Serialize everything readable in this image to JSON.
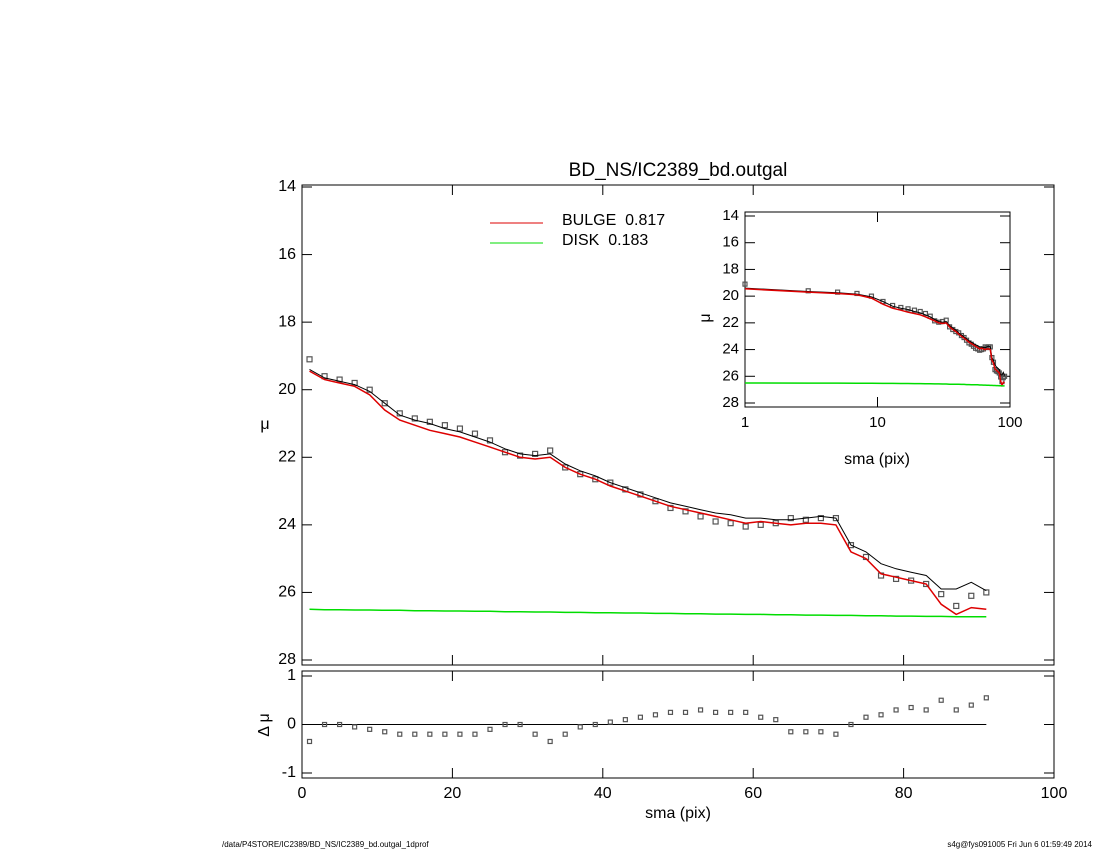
{
  "chart_data": [
    {
      "type": "line",
      "title": "BD_NS/IC2389_bd.outgal",
      "ylabel": "μ",
      "x": [
        1,
        3,
        5,
        7,
        9,
        11,
        13,
        15,
        17,
        19,
        21,
        23,
        25,
        27,
        29,
        31,
        33,
        35,
        37,
        39,
        41,
        43,
        45,
        47,
        49,
        51,
        53,
        55,
        57,
        59,
        61,
        63,
        65,
        67,
        69,
        71,
        73,
        75,
        77,
        79,
        81,
        83,
        85,
        87,
        89,
        91
      ],
      "points": {
        "color": "#555555",
        "values": [
          19.1,
          19.6,
          19.7,
          19.8,
          20.0,
          20.4,
          20.7,
          20.85,
          20.95,
          21.05,
          21.15,
          21.3,
          21.5,
          21.85,
          21.95,
          21.9,
          21.8,
          22.3,
          22.5,
          22.65,
          22.75,
          22.95,
          23.1,
          23.3,
          23.5,
          23.6,
          23.75,
          23.9,
          23.95,
          24.05,
          24.0,
          23.95,
          23.8,
          23.85,
          23.8,
          23.8,
          24.6,
          24.95,
          25.5,
          25.6,
          25.65,
          25.75,
          26.05,
          26.4,
          26.1,
          26.0
        ]
      },
      "total": {
        "color": "#000000",
        "values": [
          19.4,
          19.65,
          19.75,
          19.85,
          20.05,
          20.4,
          20.75,
          20.9,
          21.0,
          21.15,
          21.25,
          21.4,
          21.55,
          21.75,
          21.9,
          21.95,
          21.9,
          22.2,
          22.4,
          22.55,
          22.75,
          22.9,
          23.05,
          23.2,
          23.35,
          23.45,
          23.55,
          23.65,
          23.7,
          23.8,
          23.8,
          23.85,
          23.85,
          23.8,
          23.75,
          23.8,
          24.6,
          24.8,
          25.15,
          25.3,
          25.4,
          25.5,
          25.9,
          25.9,
          25.7,
          25.95
        ]
      },
      "series": [
        {
          "name": "BULGE  0.817",
          "color": "#dd0000",
          "values": [
            19.45,
            19.7,
            19.8,
            19.9,
            20.15,
            20.6,
            20.9,
            21.05,
            21.2,
            21.3,
            21.4,
            21.55,
            21.7,
            21.85,
            22.0,
            22.05,
            22.0,
            22.3,
            22.5,
            22.65,
            22.85,
            23.0,
            23.15,
            23.3,
            23.45,
            23.55,
            23.65,
            23.75,
            23.85,
            23.95,
            23.9,
            23.95,
            24.0,
            23.95,
            23.95,
            24.0,
            24.8,
            25.0,
            25.45,
            25.55,
            25.65,
            25.75,
            26.35,
            26.65,
            26.45,
            26.5
          ]
        },
        {
          "name": "DISK  0.183",
          "color": "#00dd00",
          "values": [
            26.5,
            26.51,
            26.51,
            26.52,
            26.52,
            26.53,
            26.53,
            26.54,
            26.54,
            26.55,
            26.55,
            26.56,
            26.56,
            26.57,
            26.57,
            26.58,
            26.58,
            26.59,
            26.59,
            26.6,
            26.6,
            26.61,
            26.61,
            26.62,
            26.62,
            26.63,
            26.63,
            26.64,
            26.64,
            26.65,
            26.65,
            26.66,
            26.66,
            26.67,
            26.67,
            26.68,
            26.68,
            26.69,
            26.69,
            26.7,
            26.7,
            26.71,
            26.71,
            26.72,
            26.72,
            26.72
          ]
        }
      ],
      "xlim": [
        0,
        100
      ],
      "xticks": [
        0,
        20,
        40,
        60,
        80,
        100
      ],
      "ylim": [
        14,
        28
      ],
      "yticks": [
        14,
        16,
        18,
        20,
        22,
        24,
        26,
        28
      ]
    },
    {
      "type": "scatter",
      "xlabel": "sma (pix)",
      "ylabel": "Δ μ",
      "values": [
        -0.35,
        0.0,
        0.0,
        -0.05,
        -0.1,
        -0.15,
        -0.2,
        -0.2,
        -0.2,
        -0.2,
        -0.2,
        -0.2,
        -0.1,
        0.0,
        0.0,
        -0.2,
        -0.35,
        -0.2,
        -0.05,
        0.0,
        0.05,
        0.1,
        0.15,
        0.2,
        0.25,
        0.25,
        0.3,
        0.25,
        0.25,
        0.25,
        0.15,
        0.1,
        -0.15,
        -0.15,
        -0.15,
        -0.2,
        0.0,
        0.15,
        0.2,
        0.3,
        0.35,
        0.3,
        0.5,
        0.3,
        0.4,
        0.55
      ],
      "xlim": [
        0,
        100
      ],
      "xticks": [
        0,
        20,
        40,
        60,
        80,
        100
      ],
      "ylim": [
        -1,
        1
      ],
      "yticks": [
        -1,
        0,
        1
      ]
    },
    {
      "type": "inset",
      "xlabel": "sma (pix)",
      "ylabel": "μ",
      "log_x": true,
      "xlim": [
        1,
        100
      ],
      "xticks": [
        1,
        10,
        100
      ],
      "ylim": [
        14,
        28
      ],
      "yticks": [
        14,
        16,
        18,
        20,
        22,
        24,
        26,
        28
      ]
    }
  ],
  "footer": {
    "left": "/data/P4STORE/IC2389/BD_NS/IC2389_bd.outgal_1dprof",
    "right": "s4g@fys091005  Fri Jun  6 01:59:49 2014"
  }
}
